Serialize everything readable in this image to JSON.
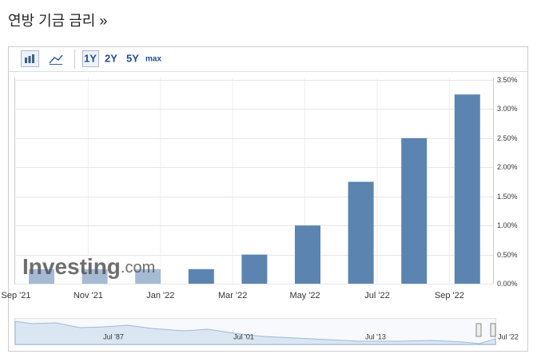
{
  "title": "연방 기금 금리 »",
  "toolbar": {
    "ranges": [
      "1Y",
      "2Y",
      "5Y",
      "max"
    ]
  },
  "watermark": {
    "brand": "Investing",
    "suffix": ".com"
  },
  "navigator": {
    "labels": [
      "Jul '87",
      "Jul '01",
      "Jul '13",
      "Jul '22"
    ]
  },
  "chart_data": {
    "type": "bar",
    "x_labels": [
      "Sep '21",
      "Nov '21",
      "Jan '22",
      "Mar '22",
      "May '22",
      "Jul '22",
      "Sep '22"
    ],
    "categories": [
      null,
      null,
      null,
      null,
      null,
      null,
      null,
      null,
      null
    ],
    "values": [
      0.25,
      0.25,
      0.25,
      0.25,
      0.5,
      1.0,
      1.75,
      2.5,
      3.25
    ],
    "color": "#5b84b1",
    "ylim": [
      0,
      3.5
    ],
    "yticks": [
      {
        "value": 0,
        "label": "0.00%"
      },
      {
        "value": 0.5,
        "label": "0.50%"
      },
      {
        "value": 1.0,
        "label": "1.00%"
      },
      {
        "value": 1.5,
        "label": "1.50%"
      },
      {
        "value": 2.0,
        "label": "2.00%"
      },
      {
        "value": 2.5,
        "label": "2.50%"
      },
      {
        "value": 3.0,
        "label": "3.00%"
      },
      {
        "value": 3.5,
        "label": "3.50%"
      }
    ],
    "grid": true
  }
}
